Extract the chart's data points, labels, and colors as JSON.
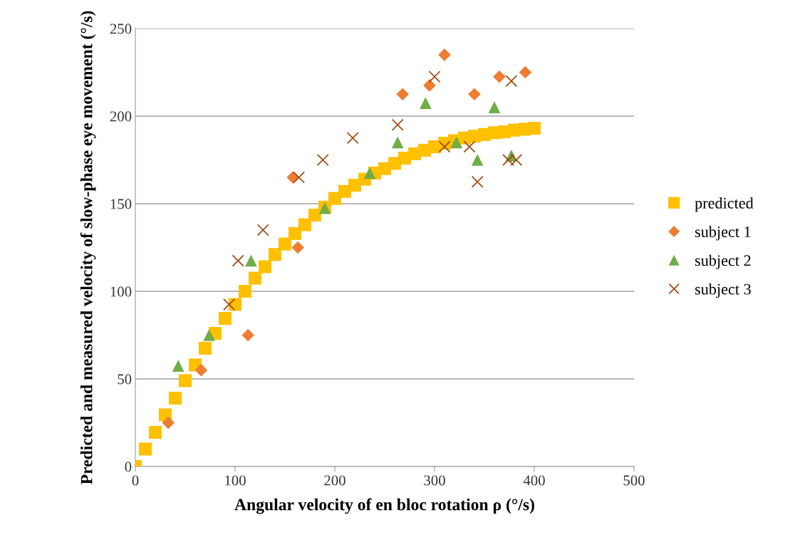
{
  "chart_data": {
    "type": "scatter",
    "xlabel": "Angular velocity of en bloc rotation ρ (°/s)",
    "ylabel": "Predicted and measured velocity of slow-phase eye movement (°/s)",
    "xlim": [
      0,
      500
    ],
    "xticks": [
      0,
      100,
      200,
      300,
      400,
      500
    ],
    "ylim": [
      0,
      250
    ],
    "yticks": [
      0,
      50,
      100,
      150,
      200,
      250
    ],
    "grid": "y",
    "legend": "right",
    "series": [
      {
        "name": "predicted",
        "color": "#ffc000",
        "marker": "square",
        "x": [
          0,
          10,
          20,
          30,
          40,
          50,
          60,
          70,
          80,
          90,
          100,
          110,
          120,
          130,
          140,
          150,
          160,
          170,
          180,
          190,
          200,
          210,
          220,
          230,
          240,
          250,
          260,
          270,
          280,
          290,
          300,
          310,
          320,
          330,
          340,
          350,
          360,
          370,
          380,
          390,
          400
        ],
        "values": [
          0,
          10,
          19.5,
          29.5,
          39,
          49,
          58,
          67.5,
          76,
          84.5,
          92.5,
          100,
          107.5,
          114,
          121,
          127,
          133,
          138,
          143.5,
          148,
          153,
          157,
          160.5,
          164,
          167.5,
          170,
          173,
          176,
          178.5,
          180.5,
          182.5,
          184.5,
          186,
          187.5,
          188.5,
          189.5,
          190.5,
          191,
          192,
          192.5,
          193
        ]
      },
      {
        "name": "subject 1",
        "color": "#ed7d31",
        "marker": "diamond",
        "x": [
          33,
          66,
          113,
          158,
          163,
          268,
          295,
          310,
          340,
          365,
          391
        ],
        "values": [
          25,
          55,
          75,
          165,
          125,
          212.5,
          217.5,
          235,
          212.5,
          222.5,
          225
        ]
      },
      {
        "name": "subject 2",
        "color": "#70ad47",
        "marker": "triangle",
        "x": [
          43,
          74,
          116,
          190,
          235,
          263,
          291,
          322,
          343,
          360,
          377
        ],
        "values": [
          57.5,
          75,
          117.5,
          147.5,
          167.5,
          185,
          207.5,
          185,
          175,
          205,
          177.5
        ]
      },
      {
        "name": "subject 3",
        "color": "#9e480e",
        "marker": "cross",
        "x": [
          94,
          103,
          128,
          164,
          188,
          218,
          263,
          300,
          310,
          335,
          343,
          374,
          382,
          377
        ],
        "values": [
          92.5,
          117.5,
          135,
          165,
          175,
          187.5,
          195,
          222.5,
          182.5,
          182.5,
          162.5,
          175,
          175,
          220
        ]
      }
    ]
  }
}
